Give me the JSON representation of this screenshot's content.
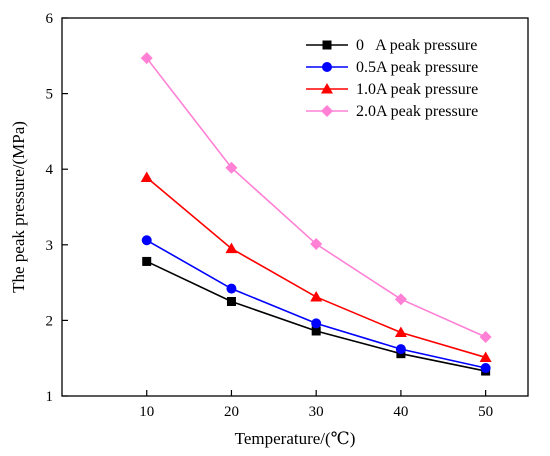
{
  "chart_data": {
    "type": "line",
    "xlabel": "Temperature/(℃)",
    "ylabel": "The peak pressure/(MPa)",
    "x": [
      10,
      20,
      30,
      40,
      50
    ],
    "xlim": [
      0,
      55
    ],
    "ylim": [
      1,
      6
    ],
    "xticks": [
      "10",
      "20",
      "30",
      "40",
      "50"
    ],
    "yticks": [
      "1",
      "2",
      "3",
      "4",
      "5",
      "6"
    ],
    "grid": false,
    "legend_position": "top-right",
    "series": [
      {
        "name": "0   A peak pressure",
        "values": [
          2.78,
          2.25,
          1.86,
          1.56,
          1.33
        ],
        "color": "#000000",
        "marker": "square"
      },
      {
        "name": "0.5A peak pressure",
        "values": [
          3.06,
          2.42,
          1.96,
          1.62,
          1.37
        ],
        "color": "#0000ff",
        "marker": "circle"
      },
      {
        "name": "1.0A peak pressure",
        "values": [
          3.89,
          2.95,
          2.31,
          1.84,
          1.51
        ],
        "color": "#ff0000",
        "marker": "triangle"
      },
      {
        "name": "2.0A peak pressure",
        "values": [
          5.47,
          4.02,
          3.01,
          2.28,
          1.78
        ],
        "color": "#ff80d5",
        "marker": "diamond"
      }
    ]
  }
}
